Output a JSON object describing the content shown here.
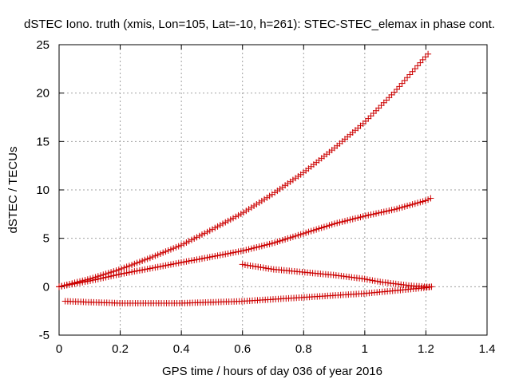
{
  "chart_data": {
    "type": "scatter",
    "title": "dSTEC Iono. truth (xmis, Lon=105, Lat=-10, h=261): STEC-STEC_elemax in phase cont.",
    "xlabel": "GPS time / hours of day 036 of year 2016",
    "ylabel": "dSTEC  / TECUs",
    "xlim": [
      0,
      1.4
    ],
    "ylim": [
      -5,
      25
    ],
    "xticks": [
      0,
      0.2,
      0.4,
      0.6,
      0.8,
      1,
      1.2,
      1.4
    ],
    "xtick_labels": [
      "0",
      "0.2",
      "0.4",
      "0.6",
      "0.8",
      "1",
      "1.2",
      "1.4"
    ],
    "yticks": [
      -5,
      0,
      5,
      10,
      15,
      20,
      25
    ],
    "ytick_labels": [
      "-5",
      "0",
      "5",
      "10",
      "15",
      "20",
      "25"
    ],
    "grid": true,
    "marker": "plus",
    "marker_color": "#cc0000",
    "series": [
      {
        "x": [
          0.0,
          0.1,
          0.2,
          0.3,
          0.4,
          0.5,
          0.6,
          0.7,
          0.8,
          0.9,
          1.0,
          1.1,
          1.15,
          1.2,
          1.215
        ],
        "y": [
          0.0,
          0.8,
          1.8,
          3.0,
          4.3,
          5.9,
          7.6,
          9.6,
          11.8,
          14.3,
          17.0,
          20.2,
          22.0,
          23.8,
          24.3
        ]
      },
      {
        "x": [
          0.0,
          0.1,
          0.2,
          0.3,
          0.4,
          0.5,
          0.6,
          0.7,
          0.8,
          0.9,
          1.0,
          1.1,
          1.2,
          1.22
        ],
        "y": [
          0.0,
          0.6,
          1.3,
          1.9,
          2.5,
          3.1,
          3.7,
          4.5,
          5.5,
          6.5,
          7.3,
          8.0,
          8.9,
          9.2
        ]
      },
      {
        "x": [
          0.6,
          0.7,
          0.8,
          0.9,
          1.0,
          1.05,
          1.1,
          1.15,
          1.2,
          1.22
        ],
        "y": [
          2.3,
          1.8,
          1.5,
          1.2,
          0.8,
          0.5,
          0.3,
          0.1,
          0.0,
          0.0
        ]
      },
      {
        "x": [
          0.02,
          0.1,
          0.2,
          0.3,
          0.4,
          0.5,
          0.6,
          0.7,
          0.8,
          0.9,
          1.0,
          1.1,
          1.2,
          1.22
        ],
        "y": [
          -1.5,
          -1.6,
          -1.7,
          -1.7,
          -1.7,
          -1.6,
          -1.5,
          -1.3,
          -1.1,
          -0.9,
          -0.7,
          -0.4,
          -0.1,
          0.0
        ]
      }
    ]
  }
}
